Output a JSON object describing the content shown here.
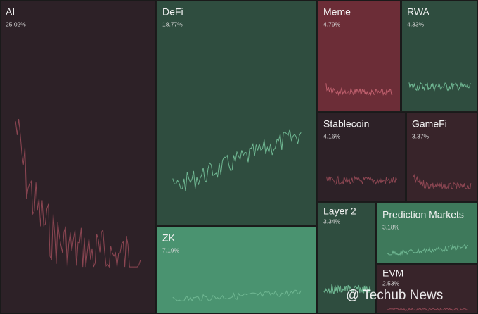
{
  "chart_data": {
    "type": "treemap",
    "categories": [
      "AI",
      "DeFi",
      "Meme",
      "RWA",
      "Stablecoin",
      "GameFi",
      "ZK",
      "Layer 2",
      "Prediction Markets",
      "EVM"
    ],
    "values": [
      25.02,
      18.77,
      4.79,
      4.33,
      4.16,
      3.37,
      7.19,
      3.34,
      3.18,
      2.53
    ],
    "value_labels": [
      "25.02%",
      "18.77%",
      "4.79%",
      "4.33%",
      "4.16%",
      "3.37%",
      "7.19%",
      "3.34%",
      "3.18%",
      "2.53%"
    ],
    "colors": [
      "#2d2127",
      "#2f4d3f",
      "#6c2d37",
      "#2f4d3f",
      "#2d2127",
      "#38242a",
      "#4a9370",
      "#2f4d3f",
      "#3e795b",
      "#38242a"
    ],
    "watermark": "@ Techub News"
  }
}
